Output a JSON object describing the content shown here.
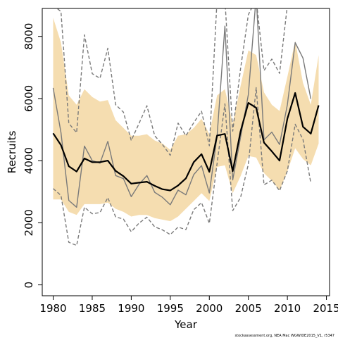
{
  "chart_data": {
    "type": "line",
    "xlabel": "Year",
    "ylabel": "Recruits",
    "xlim": [
      1978.6,
      2015.4
    ],
    "ylim": [
      -350,
      8900
    ],
    "xticks": [
      1980,
      1985,
      1990,
      1995,
      2000,
      2005,
      2010,
      2015
    ],
    "yticks": [
      0,
      2000,
      4000,
      6000,
      8000
    ],
    "grid": false,
    "credit": "stockassessment.org, NEA Mac WGWIDE2015_V1, r5347",
    "band": {
      "x": [
        1980,
        1981,
        1982,
        1983,
        1984,
        1985,
        1986,
        1987,
        1988,
        1989,
        1990,
        1991,
        1992,
        1993,
        1994,
        1995,
        1996,
        1997,
        1998,
        1999,
        2000,
        2001,
        2002,
        2003,
        2004,
        2005,
        2006,
        2007,
        2008,
        2009,
        2010,
        2011,
        2012,
        2013,
        2014
      ],
      "upper": [
        8600,
        7800,
        6100,
        5800,
        6300,
        6050,
        5900,
        5950,
        5300,
        5050,
        4800,
        4800,
        4850,
        4650,
        4550,
        4350,
        4800,
        4850,
        5050,
        5350,
        4850,
        6100,
        6300,
        5200,
        6400,
        7550,
        7400,
        6200,
        5800,
        5600,
        6700,
        7850,
        6500,
        5800,
        7400
      ],
      "lower": [
        2750,
        2750,
        2350,
        2250,
        2600,
        2600,
        2600,
        2650,
        2450,
        2350,
        2200,
        2250,
        2250,
        2150,
        2100,
        2050,
        2200,
        2450,
        2700,
        2950,
        2700,
        3800,
        3850,
        2950,
        3500,
        4150,
        4100,
        3600,
        3350,
        3050,
        3650,
        4400,
        4050,
        3850,
        4550
      ]
    },
    "series": [
      {
        "role": "estimate",
        "color": "#000000",
        "style": "solid",
        "x": [
          1980,
          1981,
          1982,
          1983,
          1984,
          1985,
          1986,
          1987,
          1988,
          1989,
          1990,
          1991,
          1992,
          1993,
          1994,
          1995,
          1996,
          1997,
          1998,
          1999,
          2000,
          2001,
          2002,
          2003,
          2004,
          2005,
          2006,
          2007,
          2008,
          2009,
          2010,
          2011,
          2012,
          2013,
          2014
        ],
        "values": [
          4880,
          4500,
          3820,
          3650,
          4070,
          3950,
          3950,
          4000,
          3670,
          3500,
          3260,
          3290,
          3320,
          3190,
          3080,
          3040,
          3200,
          3430,
          3950,
          4210,
          3640,
          4810,
          4860,
          3660,
          4940,
          5860,
          5700,
          4580,
          4300,
          4000,
          5350,
          6180,
          5090,
          4870,
          5780
        ]
      },
      {
        "role": "reference-run",
        "color": "#7a7a7a",
        "style": "solid",
        "x": [
          1980,
          1981,
          1982,
          1983,
          1984,
          1985,
          1986,
          1987,
          1988,
          1989,
          1990,
          1991,
          1992,
          1993,
          1994,
          1995,
          1996,
          1997,
          1998,
          1999,
          2000,
          2001,
          2002,
          2003,
          2004,
          2005,
          2006,
          2007,
          2008,
          2009,
          2010,
          2011,
          2012,
          2013
        ],
        "values": [
          6340,
          4900,
          2720,
          2500,
          4470,
          4000,
          3920,
          4620,
          3520,
          3420,
          2840,
          3240,
          3520,
          2980,
          2820,
          2580,
          3050,
          2900,
          3550,
          3840,
          2960,
          4790,
          8330,
          3380,
          4750,
          6130,
          9300,
          4670,
          4920,
          4520,
          5800,
          7800,
          7300,
          5990
        ]
      },
      {
        "role": "upper-bound",
        "color": "#7a7a7a",
        "style": "dashed",
        "x": [
          1980,
          1981,
          1982,
          1983,
          1984,
          1985,
          1986,
          1987,
          1988,
          1989,
          1990,
          1991,
          1992,
          1993,
          1994,
          1995,
          1996,
          1997,
          1998,
          1999,
          2000,
          2001,
          2002,
          2003,
          2004,
          2005,
          2006,
          2007,
          2008,
          2009,
          2010,
          2011
        ],
        "values": [
          9000,
          8800,
          5200,
          4900,
          8050,
          6800,
          6650,
          7620,
          5800,
          5560,
          4650,
          5200,
          5770,
          4800,
          4520,
          4170,
          5210,
          4800,
          5220,
          5590,
          4480,
          9200,
          9200,
          4950,
          6960,
          8700,
          9200,
          6900,
          7270,
          6810,
          9000,
          9200
        ]
      },
      {
        "role": "lower-bound",
        "color": "#7a7a7a",
        "style": "dashed",
        "x": [
          1980,
          1981,
          1982,
          1983,
          1984,
          1985,
          1986,
          1987,
          1988,
          1989,
          1990,
          1991,
          1992,
          1993,
          1994,
          1995,
          1996,
          1997,
          1998,
          1999,
          2000,
          2001,
          2002,
          2003,
          2004,
          2005,
          2006,
          2007,
          2008,
          2009,
          2010,
          2011,
          2012,
          2013
        ],
        "values": [
          3100,
          2880,
          1370,
          1270,
          2500,
          2290,
          2330,
          2810,
          2190,
          2120,
          1710,
          1990,
          2180,
          1870,
          1770,
          1620,
          1860,
          1780,
          2420,
          2650,
          1980,
          3910,
          5830,
          2390,
          2810,
          3890,
          6350,
          3220,
          3370,
          3030,
          3670,
          5170,
          4680,
          3280
        ]
      }
    ]
  }
}
